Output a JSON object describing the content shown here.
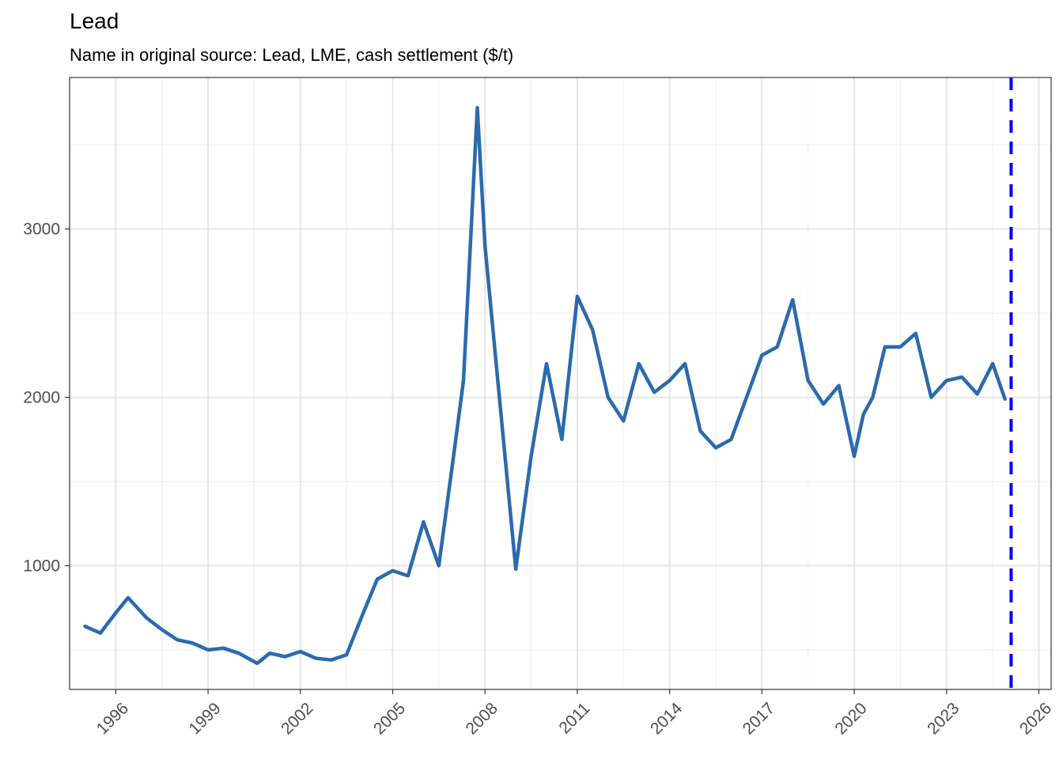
{
  "chart_data": {
    "type": "line",
    "title": "Lead",
    "subtitle": "Name in original source: Lead, LME, cash settlement ($/t)",
    "xlabel": "",
    "ylabel": "",
    "xlim": [
      1994.5,
      2026.4
    ],
    "ylim": [
      265,
      3900
    ],
    "x_ticks": [
      "1996",
      "1999",
      "2002",
      "2005",
      "2008",
      "2011",
      "2014",
      "2017",
      "2020",
      "2023",
      "2026"
    ],
    "y_ticks": [
      "1000",
      "2000",
      "3000"
    ],
    "grid": true,
    "vline": {
      "x": 2025.1,
      "color": "#0000ff",
      "style": "dashed"
    },
    "series": [
      {
        "color": "#b2182b",
        "x": [
          1995.0,
          1995.5,
          1996.0,
          1996.4,
          1997.0,
          1997.5,
          1998.0,
          1998.5,
          1999.0,
          1999.5,
          2000.0,
          2000.6,
          2001.0,
          2001.5,
          2002.0,
          2002.5,
          2003.0,
          2003.5,
          2004.0,
          2004.5,
          2005.0,
          2005.5,
          2006.0,
          2006.5,
          2007.0,
          2007.3,
          2007.75,
          2008.0,
          2008.5,
          2009.0,
          2009.5,
          2010.0,
          2010.5,
          2011.0,
          2011.5,
          2012.0,
          2012.5,
          2013.0,
          2013.5,
          2014.0,
          2014.5,
          2015.0,
          2015.5,
          2016.0,
          2016.5,
          2017.0,
          2017.5,
          2018.0,
          2018.5,
          2019.0,
          2019.5,
          2020.0,
          2020.3,
          2020.6,
          2021.0,
          2021.5,
          2022.0,
          2022.5,
          2023.0,
          2023.5,
          2024.0,
          2024.5,
          2024.9
        ],
        "values": [
          640,
          600,
          720,
          810,
          690,
          620,
          560,
          540,
          500,
          510,
          480,
          420,
          480,
          460,
          490,
          450,
          440,
          470,
          700,
          920,
          970,
          940,
          1260,
          1000,
          1700,
          2100,
          3720,
          2900,
          1940,
          980,
          1650,
          2200,
          1750,
          2600,
          2400,
          2000,
          1860,
          2200,
          2030,
          2100,
          2200,
          1800,
          1700,
          1750,
          2000,
          2250,
          2300,
          2580,
          2100,
          1960,
          2070,
          1650,
          1900,
          2000,
          2300,
          2300,
          2380,
          2000,
          2100,
          2120,
          2020,
          2200,
          1990
        ]
      },
      {
        "color": "#2b6aad",
        "x": [
          1995.0,
          1995.5,
          1996.0,
          1996.4,
          1997.0,
          1997.5,
          1998.0,
          1998.5,
          1999.0,
          1999.5,
          2000.0,
          2000.6,
          2001.0,
          2001.5,
          2002.0,
          2002.5,
          2003.0,
          2003.5,
          2004.0,
          2004.5,
          2005.0,
          2005.5,
          2006.0,
          2006.5,
          2007.0,
          2007.3,
          2007.75,
          2008.0,
          2008.5,
          2009.0,
          2009.5,
          2010.0,
          2010.5,
          2011.0,
          2011.5,
          2012.0,
          2012.5,
          2013.0,
          2013.5,
          2014.0,
          2014.5,
          2015.0,
          2015.5,
          2016.0,
          2016.5,
          2017.0,
          2017.5,
          2018.0,
          2018.5,
          2019.0,
          2019.5,
          2020.0,
          2020.3,
          2020.6,
          2021.0,
          2021.5,
          2022.0,
          2022.5,
          2023.0,
          2023.5,
          2024.0,
          2024.5,
          2024.9
        ],
        "values": [
          640,
          600,
          720,
          810,
          690,
          620,
          560,
          540,
          500,
          510,
          480,
          420,
          480,
          460,
          490,
          450,
          440,
          470,
          700,
          920,
          970,
          940,
          1260,
          1000,
          1680,
          2100,
          3720,
          2900,
          1940,
          980,
          1650,
          2200,
          1750,
          2600,
          2400,
          2000,
          1860,
          2200,
          2030,
          2100,
          2200,
          1800,
          1700,
          1750,
          2000,
          2250,
          2300,
          2580,
          2100,
          1960,
          2070,
          1650,
          1900,
          2000,
          2300,
          2300,
          2380,
          2000,
          2100,
          2120,
          2020,
          2200,
          1990
        ]
      }
    ]
  }
}
